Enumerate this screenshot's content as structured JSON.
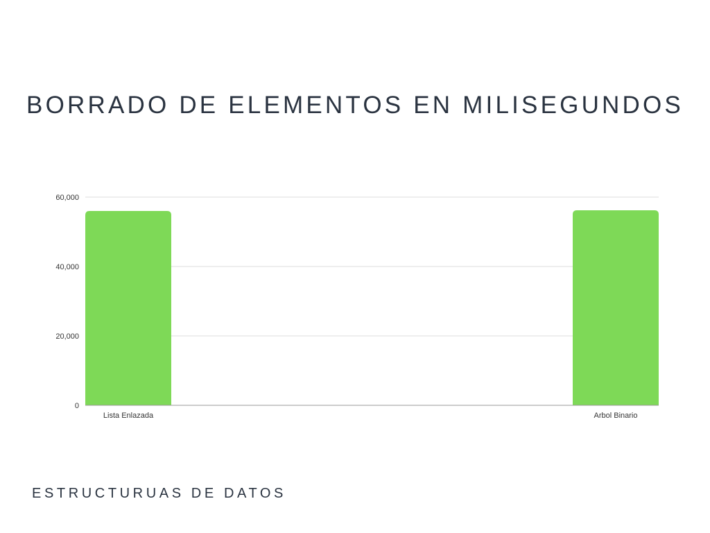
{
  "page": {
    "title": "BORRADO DE ELEMENTOS EN MILISEGUNDOS",
    "footer": "ESTRUCTURUAS DE DATOS"
  },
  "colors": {
    "bar": "#7ed957",
    "text": "#2a3340",
    "grid": "#dddddd",
    "axis": "#999999"
  },
  "chart_data": {
    "type": "bar",
    "categories": [
      "Lista Enlazada",
      "Arbol Binario"
    ],
    "values": [
      56000,
      56200
    ],
    "yticks": [
      0,
      20000,
      40000,
      60000
    ],
    "ytick_labels": [
      "0",
      "20,000",
      "40,000",
      "60,000"
    ],
    "ylim": [
      0,
      60000
    ],
    "grid": true,
    "legend": "none"
  }
}
